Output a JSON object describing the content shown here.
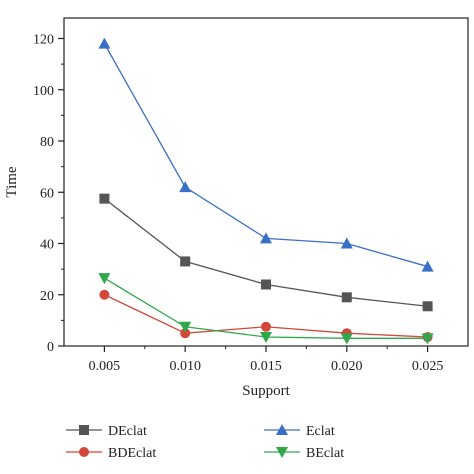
{
  "chart_data": {
    "type": "line",
    "xlabel": "Support",
    "ylabel": "Time",
    "x": [
      0.005,
      0.01,
      0.015,
      0.02,
      0.025
    ],
    "x_tick_labels": [
      "0.005",
      "0.010",
      "0.015",
      "0.020",
      "0.025"
    ],
    "xlim": [
      0.0025,
      0.0275
    ],
    "ylim": [
      0,
      128
    ],
    "y_ticks": [
      0,
      20,
      40,
      60,
      80,
      100,
      120
    ],
    "y_tick_labels": [
      "0",
      "20",
      "40",
      "60",
      "80",
      "100",
      "120"
    ],
    "grid": false,
    "legend_position": "bottom",
    "series": [
      {
        "name": "DEclat",
        "color": "#555555",
        "marker": "square",
        "values": [
          57.5,
          33,
          24,
          19,
          15.5
        ]
      },
      {
        "name": "Eclat",
        "color": "#3a6fc7",
        "marker": "triangle-up",
        "values": [
          118,
          62,
          42,
          40,
          31
        ]
      },
      {
        "name": "BDEclat",
        "color": "#d2483a",
        "marker": "circle",
        "values": [
          20,
          5,
          7.5,
          5,
          3.5
        ]
      },
      {
        "name": "BEclat",
        "color": "#2ea84a",
        "marker": "triangle-down",
        "values": [
          26.5,
          7.5,
          3.5,
          3,
          3
        ]
      }
    ]
  }
}
